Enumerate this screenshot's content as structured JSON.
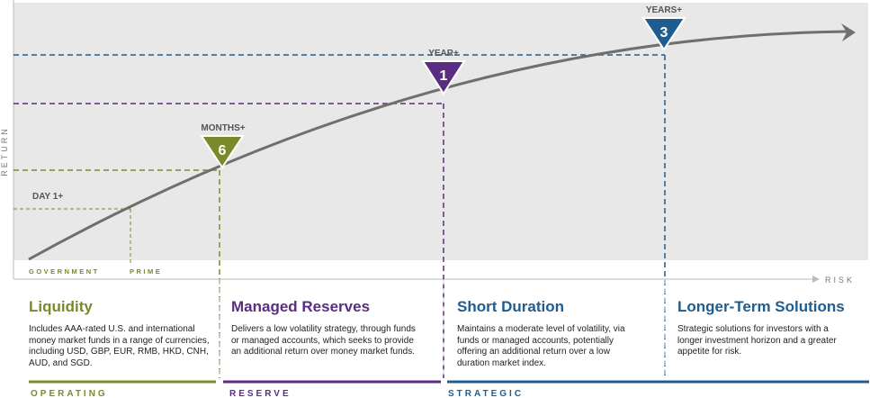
{
  "colors": {
    "green": "#7a8a2a",
    "purple": "#5a2d82",
    "blue": "#1f5c8f",
    "curve": "#6f6f6f",
    "plot_bg": "#e8e8e8"
  },
  "axes": {
    "y_label": "RETURN",
    "x_label": "RISK"
  },
  "curve_labels": {
    "day": "DAY 1+",
    "months_label": "MONTHS+",
    "months_value": "6",
    "year_label": "YEAR+",
    "year_value": "1",
    "years_label": "YEARS+",
    "years_value": "3"
  },
  "fund_types": {
    "government": "GOVERNMENT",
    "prime": "PRIME"
  },
  "columns": [
    {
      "title": "Liquidity",
      "desc": "Includes AAA-rated U.S. and international money market funds in a range of currencies, including USD, GBP, EUR, RMB, HKD, CNH, AUD, and SGD."
    },
    {
      "title": "Managed Reserves",
      "desc": "Delivers a low volatility strategy, through funds or managed accounts, which seeks to provide an additional return over money market funds."
    },
    {
      "title": "Short Duration",
      "desc": "Maintains a moderate level of volatility, via funds or managed accounts, potentially offering an additional return over a low duration market index."
    },
    {
      "title": "Longer-Term Solutions",
      "desc": "Strategic solutions for investors with a longer investment horizon and a greater appetite for risk."
    }
  ],
  "bottom_labels": {
    "operating": "OPERATING",
    "reserve": "RESERVE",
    "strategic": "STRATEGIC"
  }
}
